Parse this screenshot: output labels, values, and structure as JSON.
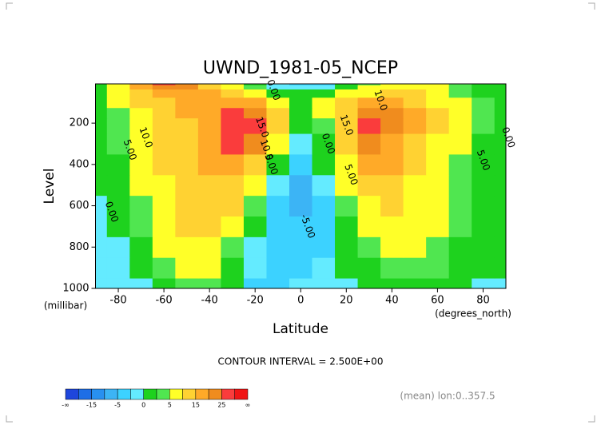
{
  "chart_data": {
    "type": "contour",
    "title": "UWND_1981-05_NCEP",
    "x_label": "Latitude",
    "x_unit": "(degrees_north)",
    "y_label": "Level",
    "y_unit": "(millibar)",
    "xlim": [
      -90,
      90
    ],
    "xticks": [
      -80,
      -60,
      -40,
      -20,
      0,
      20,
      40,
      60,
      80
    ],
    "ylim": [
      1000,
      10
    ],
    "yticks": [
      200,
      400,
      600,
      800,
      1000
    ],
    "x": [
      -90,
      -80,
      -70,
      -60,
      -50,
      -40,
      -30,
      -20,
      -10,
      0,
      10,
      20,
      30,
      40,
      50,
      60,
      70,
      80,
      90
    ],
    "levels": [
      1000,
      900,
      800,
      700,
      600,
      500,
      400,
      300,
      200,
      150,
      100,
      50,
      20,
      10
    ],
    "z": [
      [
        -2,
        -2,
        -1,
        2,
        4,
        3,
        0,
        -3,
        -4,
        -2,
        -2,
        -1,
        1,
        2,
        2,
        1,
        0,
        -1,
        -1
      ],
      [
        -2,
        -2,
        0,
        3,
        6,
        6,
        2,
        -2,
        -4,
        -3,
        -2,
        0,
        2,
        4,
        4,
        3,
        1,
        0,
        0
      ],
      [
        -2,
        -1,
        2,
        5,
        8,
        8,
        4,
        -1,
        -4,
        -4,
        -3,
        1,
        4,
        6,
        5,
        4,
        2,
        1,
        0
      ],
      [
        -1,
        0,
        3,
        7,
        10,
        10,
        7,
        1,
        -3,
        -5,
        -3,
        2,
        6,
        8,
        7,
        5,
        3,
        1,
        0
      ],
      [
        -1,
        0,
        4,
        8,
        11,
        12,
        10,
        3,
        -3,
        -6,
        -3,
        3,
        8,
        10,
        8,
        6,
        3,
        1,
        0
      ],
      [
        0,
        1,
        5,
        9,
        11,
        13,
        13,
        7,
        -2,
        -6,
        -2,
        5,
        11,
        12,
        9,
        6,
        4,
        1,
        0
      ],
      [
        0,
        2,
        6,
        10,
        12,
        15,
        18,
        13,
        1,
        -4,
        0,
        8,
        15,
        15,
        10,
        7,
        4,
        2,
        0
      ],
      [
        1,
        3,
        7,
        11,
        13,
        17,
        25,
        22,
        6,
        -2,
        2,
        11,
        20,
        19,
        13,
        8,
        5,
        2,
        1
      ],
      [
        1,
        3,
        8,
        12,
        14,
        18,
        28,
        27,
        10,
        0,
        4,
        14,
        26,
        24,
        16,
        10,
        6,
        3,
        1
      ],
      [
        1,
        4,
        9,
        13,
        15,
        18,
        25,
        24,
        10,
        1,
        5,
        14,
        23,
        22,
        16,
        10,
        6,
        3,
        1
      ],
      [
        2,
        5,
        10,
        14,
        15,
        16,
        18,
        15,
        6,
        2,
        5,
        10,
        16,
        16,
        13,
        9,
        5,
        3,
        1
      ],
      [
        2,
        7,
        13,
        18,
        18,
        15,
        10,
        6,
        2,
        0,
        2,
        5,
        9,
        11,
        10,
        7,
        4,
        2,
        1
      ],
      [
        2,
        8,
        16,
        22,
        20,
        14,
        8,
        3,
        -1,
        -2,
        -1,
        2,
        5,
        7,
        7,
        5,
        3,
        2,
        1
      ],
      [
        2,
        8,
        18,
        26,
        22,
        14,
        6,
        2,
        -2,
        -4,
        -3,
        0,
        3,
        5,
        6,
        5,
        3,
        2,
        1
      ]
    ],
    "boundaries": [
      -20,
      -15,
      -10,
      -5,
      -2.5,
      0,
      2.5,
      5,
      10,
      15,
      20,
      25,
      30
    ],
    "colors": [
      "#1e46dc",
      "#1e6ee6",
      "#2890f0",
      "#3cb4f5",
      "#3cd2ff",
      "#64ebff",
      "#1ed21e",
      "#50e650",
      "#ffff28",
      "#ffd232",
      "#ffaa28",
      "#f08c1e",
      "#fa3c3c",
      "#f01414"
    ],
    "contour_labels": [
      {
        "text": "10.0",
        "lat": -68,
        "level": 270
      },
      {
        "text": "5.00",
        "lat": -75,
        "level": 330
      },
      {
        "text": "0.00",
        "lat": -83,
        "level": 630
      },
      {
        "text": "15.0",
        "lat": -17,
        "level": 220
      },
      {
        "text": "10.0",
        "lat": -15,
        "level": 330
      },
      {
        "text": "5.00",
        "lat": -13,
        "level": 400
      },
      {
        "text": "0.00",
        "lat": 12,
        "level": 300
      },
      {
        "text": "-5.00",
        "lat": 3,
        "level": 700
      },
      {
        "text": "10.0",
        "lat": 35,
        "level": 90
      },
      {
        "text": "15.0",
        "lat": 20,
        "level": 210
      },
      {
        "text": "5.00",
        "lat": 22,
        "level": 450
      },
      {
        "text": "5.00",
        "lat": 80,
        "level": 380
      },
      {
        "text": "0.00",
        "lat": 91,
        "level": 270
      },
      {
        "text": "0.00",
        "lat": -12,
        "level": 40
      }
    ],
    "contour_interval": "CONTOUR INTERVAL = 2.500E+00",
    "footnote": "(mean) lon:0..357.5",
    "colorbar": {
      "ticks": [
        -15,
        -5,
        0,
        5,
        15,
        25
      ],
      "end_labels": [
        "-∞",
        "∞"
      ]
    }
  }
}
